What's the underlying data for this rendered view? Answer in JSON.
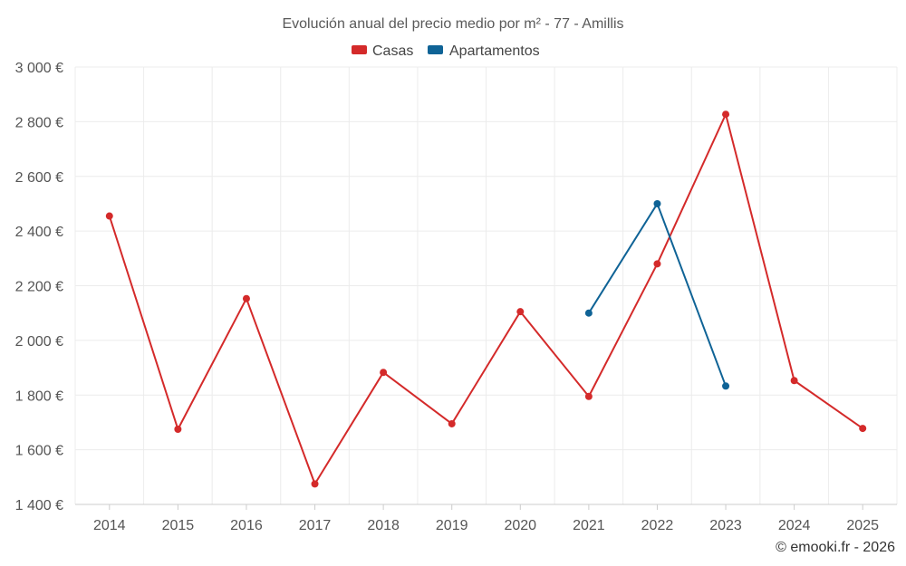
{
  "chart_data": {
    "type": "line",
    "title": "Evolución anual del precio medio por m² - 77 - Amillis",
    "categories": [
      "2014",
      "2015",
      "2016",
      "2017",
      "2018",
      "2019",
      "2020",
      "2021",
      "2022",
      "2023",
      "2024",
      "2025"
    ],
    "ylim": [
      1400,
      3000
    ],
    "yticks": [
      1400,
      1600,
      1800,
      2000,
      2200,
      2400,
      2600,
      2800,
      3000
    ],
    "ytick_labels": [
      "1 400 €",
      "1 600 €",
      "1 800 €",
      "2 000 €",
      "2 200 €",
      "2 400 €",
      "2 600 €",
      "2 800 €",
      "3 000 €"
    ],
    "series": [
      {
        "name": "Casas",
        "color": "#d42a2a",
        "values": [
          2455,
          1675,
          2153,
          1475,
          1883,
          1695,
          2105,
          1795,
          2280,
          2827,
          1853,
          1678
        ]
      },
      {
        "name": "Apartamentos",
        "color": "#0f6396",
        "values": [
          null,
          null,
          null,
          null,
          null,
          null,
          null,
          2100,
          2500,
          1833,
          null,
          null
        ]
      }
    ],
    "legend": "top-center",
    "grid": true
  },
  "credit": "© emooki.fr - 2026"
}
